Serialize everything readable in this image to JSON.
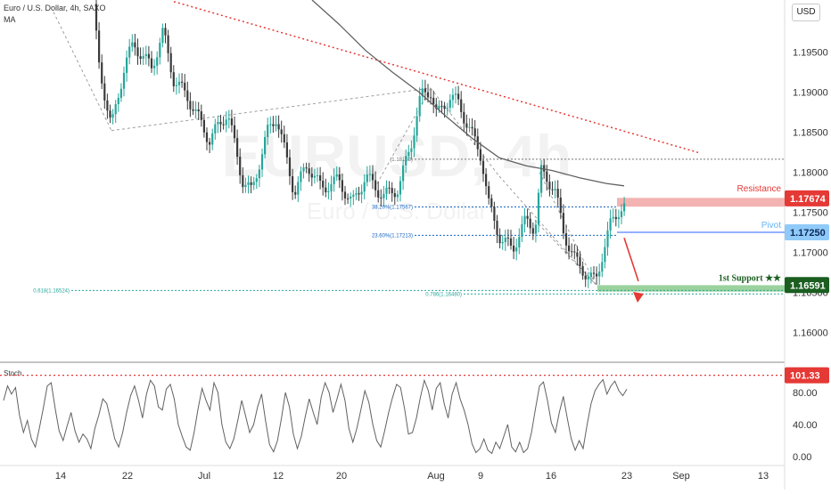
{
  "header": {
    "symbol_line": "Euro / U.S. Dollar, 4h, SAXO",
    "indicator": "MA",
    "currency": "USD"
  },
  "watermark": {
    "ticker": "EURUSD",
    "interval": "4h",
    "name": "Euro / U.S. Dollar"
  },
  "price_axis": {
    "ticks": [
      1.195,
      1.19,
      1.185,
      1.18,
      1.175,
      1.17,
      1.165,
      1.16
    ],
    "tick_labels": [
      "1.19500",
      "1.19000",
      "1.18500",
      "1.18000",
      "1.17500",
      "1.17000",
      "1.16500",
      "1.16000"
    ]
  },
  "time_axis": {
    "labels": [
      "14",
      "22",
      "Jul",
      "12",
      "20",
      "Aug",
      "9",
      "16",
      "23",
      "Sep",
      "13"
    ]
  },
  "chart_data": [
    {
      "type": "candlestick",
      "title": "Euro / U.S. Dollar, 4h, SAXO",
      "ylim": [
        1.1565,
        1.2015
      ],
      "levels": [
        {
          "name": "Resistance",
          "value": 1.17674,
          "label": "1.17674",
          "color": "#e53935",
          "zone": [
            1.1757,
            1.1768
          ]
        },
        {
          "name": "Pivot",
          "value": 1.1725,
          "label": "1.17250",
          "color": "#2962ff"
        },
        {
          "name": "1st Support ★★",
          "value": 1.16591,
          "label": "1.16591",
          "color": "#1b5e20",
          "zone": [
            1.1651,
            1.1659
          ]
        }
      ],
      "fibonacci": [
        {
          "label": "38.20%(1.17567)",
          "value": 1.17567
        },
        {
          "label": "23.60%(1.17213)",
          "value": 1.17213
        },
        {
          "label": "0.618(1.16524)",
          "value": 1.16524
        },
        {
          "label": "0.786(1.16480)",
          "value": 1.1648
        },
        {
          "label": "(1.18163)",
          "value": 1.18163
        }
      ],
      "moving_average_label": "MA",
      "colors": {
        "up": "#26a69a",
        "down": "#3a3a3a",
        "ma": "#616161",
        "trendline": "#e53935"
      }
    },
    {
      "type": "line",
      "title": "Stoch",
      "ylim": [
        -10,
        112
      ],
      "ticks": [
        0,
        40,
        80
      ],
      "tick_labels": [
        "0.00",
        "40.00",
        "80.00"
      ],
      "reference": {
        "value": 101.33,
        "label": "101.33"
      },
      "series": [
        {
          "values": [
            70,
            88,
            78,
            86,
            52,
            30,
            45,
            22,
            12,
            35,
            60,
            88,
            92,
            60,
            32,
            20,
            38,
            55,
            32,
            18,
            28,
            22,
            10,
            35,
            52,
            72,
            66,
            45,
            22,
            12,
            30,
            55,
            76,
            88,
            70,
            48,
            78,
            95,
            88,
            62,
            58,
            84,
            90,
            72,
            40,
            25,
            12,
            8,
            30,
            60,
            85,
            70,
            58,
            92,
            80,
            40,
            18,
            10,
            22,
            45,
            70,
            50,
            30,
            40,
            62,
            78,
            45,
            15,
            6,
            20,
            48,
            80,
            62,
            28,
            10,
            25,
            50,
            72,
            55,
            40,
            74,
            92,
            80,
            55,
            72,
            90,
            70,
            35,
            18,
            35,
            58,
            82,
            68,
            40,
            20,
            12,
            32,
            55,
            74,
            90,
            86,
            60,
            28,
            30,
            48,
            74,
            95,
            82,
            58,
            85,
            92,
            66,
            48,
            78,
            92,
            72,
            58,
            40,
            16,
            5,
            10,
            22,
            8,
            4,
            18,
            10,
            25,
            40,
            12,
            6,
            18,
            5,
            10,
            30,
            60,
            88,
            93,
            70,
            42,
            30,
            55,
            75,
            48,
            22,
            8,
            20,
            10,
            40,
            66,
            82,
            90,
            96,
            78,
            88,
            94,
            82,
            76,
            84
          ]
        }
      ]
    }
  ]
}
